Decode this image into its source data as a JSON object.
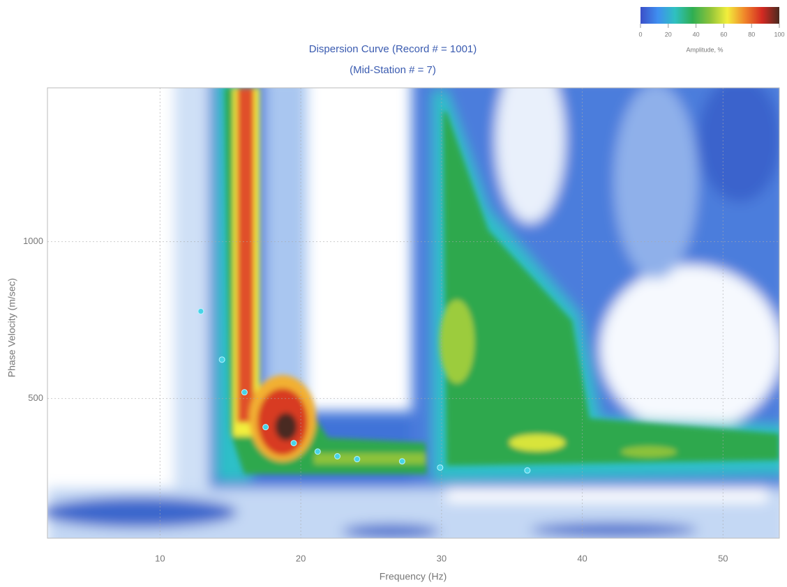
{
  "chart_data": {
    "type": "scatter",
    "title": "Dispersion Curve (Record # = 1001)",
    "subtitle": "(Mid-Station # = 7)",
    "x_label": "Frequency (Hz)",
    "y_label": "Phase Velocity (m/sec)",
    "x": [
      12.9,
      14.4,
      16.0,
      17.5,
      19.5,
      21.2,
      22.6,
      24.0,
      27.2,
      29.9,
      36.1
    ],
    "values": [
      778,
      624,
      520,
      409,
      358,
      331,
      316,
      307,
      300,
      280,
      271
    ],
    "color": "#47d3e6",
    "xlim": [
      2,
      54
    ],
    "ylim": [
      55,
      1490
    ],
    "xticks": [
      10,
      20,
      30,
      40,
      50
    ],
    "yticks": [
      500,
      1000
    ],
    "grid": true,
    "colorbar": {
      "label": "Amplitude, %",
      "lim": [
        0,
        100
      ],
      "ticks": [
        0,
        20,
        40,
        60,
        80,
        100
      ],
      "colors": [
        "#3b4fc8",
        "#3f8ff0",
        "#2fc0c0",
        "#2fae52",
        "#8cc23a",
        "#f2ee3c",
        "#f0862a",
        "#d42a22",
        "#4a2a20"
      ]
    }
  }
}
